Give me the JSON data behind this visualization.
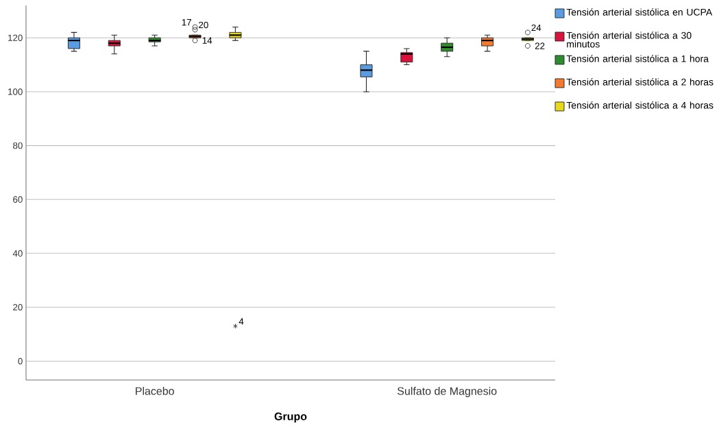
{
  "chart_data": {
    "type": "box",
    "xlabel": "Grupo",
    "categories": [
      "Placebo",
      "Sulfato de Magnesio"
    ],
    "series": [
      {
        "name": "Tensión arterial sistólica en UCPA",
        "color": "#5b9be0",
        "boxes": [
          {
            "low": 115,
            "q1": 116,
            "median": 119,
            "q3": 120,
            "high": 122
          },
          {
            "low": 100,
            "q1": 105.5,
            "median": 108,
            "q3": 110,
            "high": 115
          }
        ]
      },
      {
        "name": "Tensión arterial sistólica a 30 minutos",
        "color": "#d8143c",
        "boxes": [
          {
            "low": 114,
            "q1": 117,
            "median": 118,
            "q3": 119,
            "high": 121
          },
          {
            "low": 110,
            "q1": 111,
            "median": 114,
            "q3": 114.5,
            "high": 116
          }
        ]
      },
      {
        "name": "Tensión arterial sistólica a 1 hora",
        "color": "#2e8b2e",
        "boxes": [
          {
            "low": 117,
            "q1": 118.5,
            "median": 119,
            "q3": 120,
            "high": 121
          },
          {
            "low": 113,
            "q1": 115,
            "median": 116.5,
            "q3": 118,
            "high": 120
          }
        ]
      },
      {
        "name": "Tensión arterial sistólica a 2 horas",
        "color": "#f47a30",
        "boxes": [
          {
            "low": 120,
            "q1": 120,
            "median": 120.5,
            "q3": 121,
            "high": 121,
            "outliers": [
              124,
              123,
              119
            ]
          },
          {
            "low": 115,
            "q1": 117,
            "median": 119,
            "q3": 120,
            "high": 121
          }
        ]
      },
      {
        "name": "Tensión arterial sistólica a 4 horas",
        "color": "#e8d81c",
        "boxes": [
          {
            "low": 119,
            "q1": 120,
            "median": 121,
            "q3": 122,
            "high": 124,
            "outliers": [
              13
            ]
          },
          {
            "low": 119,
            "q1": 119,
            "median": 119.5,
            "q3": 120,
            "high": 120,
            "outliers": [
              122,
              117
            ]
          }
        ]
      }
    ],
    "annotations": [
      "17",
      "20",
      "14",
      "4",
      "24",
      "22"
    ],
    "ylim": [
      -7,
      132
    ],
    "yticks": [
      0,
      20,
      40,
      60,
      80,
      100,
      120
    ],
    "grid": "y",
    "legend": "right"
  }
}
